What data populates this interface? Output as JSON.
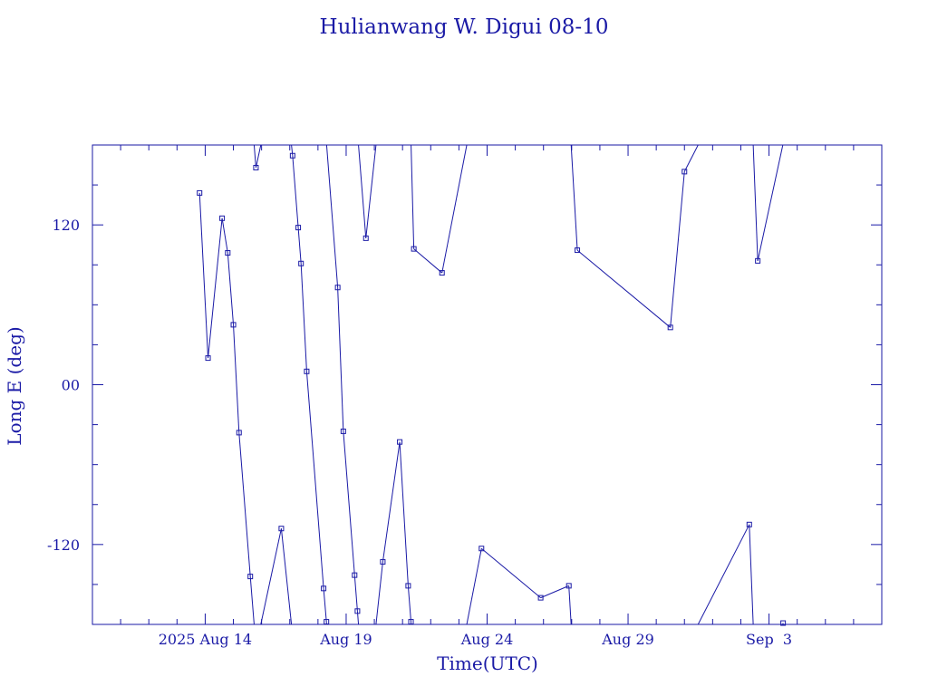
{
  "chart_data": {
    "type": "line",
    "title": "Hulianwang W. Digui 08-10",
    "xlabel": "Time(UTC)",
    "ylabel": "Long E (deg)",
    "xlim": [
      "2025-08-10T00:00",
      "2025-09-07T00:00"
    ],
    "ylim": [
      -180,
      180
    ],
    "x_ticks": [
      {
        "x": "2025-08-14T00:00",
        "label": "2025 Aug 14"
      },
      {
        "x": "2025-08-19T00:00",
        "label": "Aug 19"
      },
      {
        "x": "2025-08-24T00:00",
        "label": "Aug 24"
      },
      {
        "x": "2025-08-29T00:00",
        "label": "Aug 29"
      },
      {
        "x": "2025-09-03T00:00",
        "label": "Sep  3"
      }
    ],
    "y_ticks": [
      {
        "y": -120,
        "label": "-120"
      },
      {
        "y": 0,
        "label": "00"
      },
      {
        "y": 120,
        "label": "120"
      }
    ],
    "grid": false,
    "color": "#1a1aa6",
    "series": [
      {
        "points": [
          {
            "t": "2025-08-13T19:12",
            "lon": 144
          },
          {
            "t": "2025-08-14T02:24",
            "lon": 20
          },
          {
            "t": "2025-08-14T14:24",
            "lon": 125
          },
          {
            "t": "2025-08-14T19:12",
            "lon": 99
          },
          {
            "t": "2025-08-15T00:00",
            "lon": 45
          },
          {
            "t": "2025-08-15T04:48",
            "lon": -36
          },
          {
            "t": "2025-08-15T14:24",
            "lon": -144
          },
          {
            "t": "2025-08-15T19:12",
            "lon": 163
          },
          {
            "t": "2025-08-16T16:48",
            "lon": -108
          },
          {
            "t": "2025-08-17T02:24",
            "lon": 172
          },
          {
            "t": "2025-08-17T07:12",
            "lon": 118
          },
          {
            "t": "2025-08-17T09:36",
            "lon": 91
          },
          {
            "t": "2025-08-17T14:24",
            "lon": 10
          },
          {
            "t": "2025-08-18T04:48",
            "lon": -153
          },
          {
            "t": "2025-08-18T07:12",
            "lon": -178
          },
          {
            "t": "2025-08-18T16:48",
            "lon": 73
          },
          {
            "t": "2025-08-18T21:36",
            "lon": -35
          },
          {
            "t": "2025-08-19T07:12",
            "lon": -143
          },
          {
            "t": "2025-08-19T09:36",
            "lon": -170
          },
          {
            "t": "2025-08-19T16:48",
            "lon": 110
          },
          {
            "t": "2025-08-20T07:12",
            "lon": -133
          },
          {
            "t": "2025-08-20T21:36",
            "lon": -43
          },
          {
            "t": "2025-08-21T04:48",
            "lon": -151
          },
          {
            "t": "2025-08-21T07:12",
            "lon": -178
          },
          {
            "t": "2025-08-21T09:36",
            "lon": 102
          },
          {
            "t": "2025-08-22T09:36",
            "lon": 84
          },
          {
            "t": "2025-08-23T19:12",
            "lon": -123
          },
          {
            "t": "2025-08-25T21:36",
            "lon": -160
          },
          {
            "t": "2025-08-26T21:36",
            "lon": -151
          },
          {
            "t": "2025-08-27T04:48",
            "lon": 101
          },
          {
            "t": "2025-08-30T12:00",
            "lon": 43
          },
          {
            "t": "2025-08-31T00:00",
            "lon": 160
          },
          {
            "t": "2025-09-02T07:12",
            "lon": -105
          },
          {
            "t": "2025-09-02T14:24",
            "lon": 93
          },
          {
            "t": "2025-09-03T12:00",
            "lon": -179
          }
        ]
      }
    ]
  }
}
